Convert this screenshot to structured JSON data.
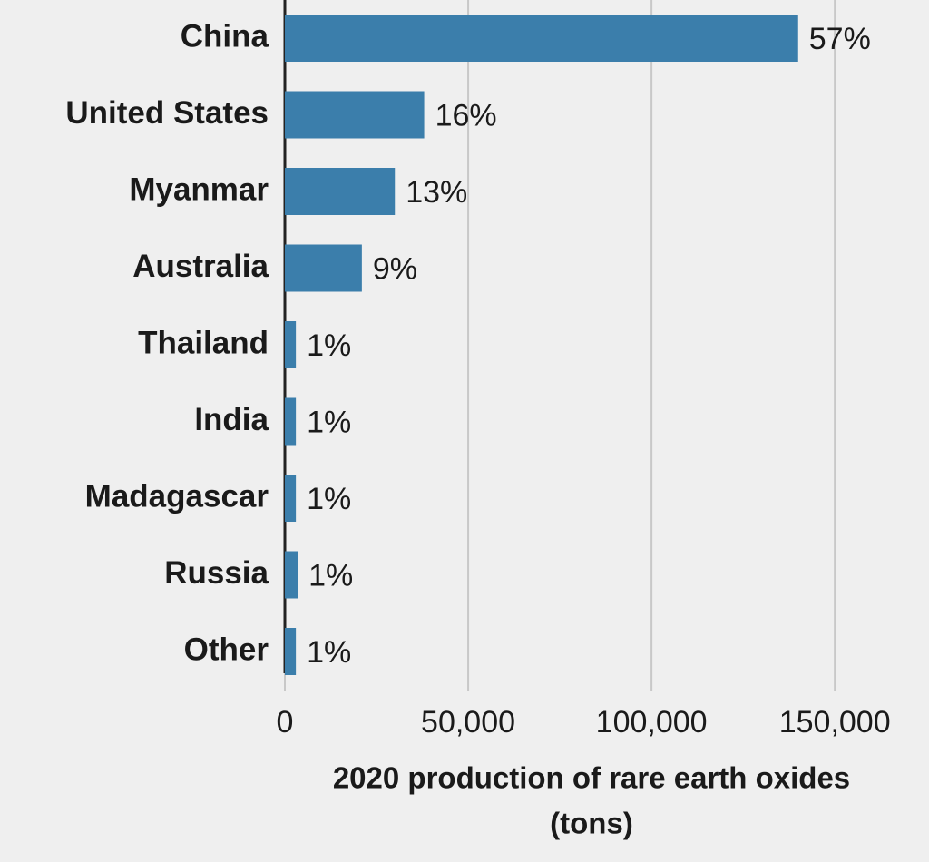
{
  "chart_data": {
    "type": "bar",
    "orientation": "horizontal",
    "categories": [
      "China",
      "United States",
      "Myanmar",
      "Australia",
      "Thailand",
      "India",
      "Madagascar",
      "Russia",
      "Other"
    ],
    "values": [
      140000,
      38000,
      30000,
      21000,
      3000,
      3000,
      3000,
      3500,
      3000
    ],
    "share_labels": [
      "57%",
      "16%",
      "13%",
      "9%",
      "1%",
      "1%",
      "1%",
      "1%",
      "1%"
    ],
    "color": "#3b7eab",
    "xlim": [
      0,
      170000
    ],
    "xticks": [
      0,
      {
        "value": 50000,
        "label": "50,000"
      },
      {
        "value": 100000,
        "label": "100,000"
      },
      {
        "value": 150000,
        "label": "150,000"
      }
    ],
    "xlabel": [
      "2020 production of rare earth oxides",
      "(tons)"
    ],
    "grid": true
  }
}
